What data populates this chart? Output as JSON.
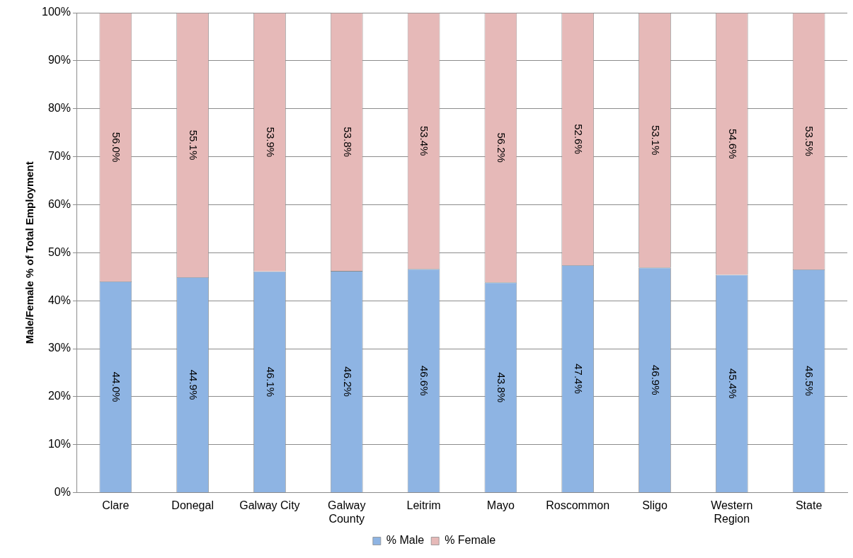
{
  "chart_data": {
    "type": "bar",
    "stacked": true,
    "ylabel": "Male/Female % of Total Employment",
    "categories": [
      "Clare",
      "Donegal",
      "Galway City",
      "Galway County",
      "Leitrim",
      "Mayo",
      "Roscommon",
      "Sligo",
      "Western Region",
      "State"
    ],
    "series": [
      {
        "name": "% Male",
        "color": "#8eb4e3",
        "values": [
          44.0,
          44.9,
          46.1,
          46.2,
          46.6,
          43.8,
          47.4,
          46.9,
          45.4,
          46.5
        ],
        "value_labels": [
          "44.0%",
          "44.9%",
          "46.1%",
          "46.2%",
          "46.6%",
          "43.8%",
          "47.4%",
          "46.9%",
          "45.4%",
          "46.5%"
        ]
      },
      {
        "name": "% Female",
        "color": "#e6b9b8",
        "values": [
          56.0,
          55.1,
          53.9,
          53.8,
          53.4,
          56.2,
          52.6,
          53.1,
          54.6,
          53.5
        ],
        "value_labels": [
          "56.0%",
          "55.1%",
          "53.9%",
          "53.8%",
          "53.4%",
          "56.2%",
          "52.6%",
          "53.1%",
          "54.6%",
          "53.5%"
        ]
      }
    ],
    "ylim": [
      0,
      100
    ],
    "yticks": [
      {
        "value": 0,
        "label": "0%"
      },
      {
        "value": 10,
        "label": "10%"
      },
      {
        "value": 20,
        "label": "20%"
      },
      {
        "value": 30,
        "label": "30%"
      },
      {
        "value": 40,
        "label": "40%"
      },
      {
        "value": 50,
        "label": "50%"
      },
      {
        "value": 60,
        "label": "60%"
      },
      {
        "value": 70,
        "label": "70%"
      },
      {
        "value": 80,
        "label": "80%"
      },
      {
        "value": 90,
        "label": "90%"
      },
      {
        "value": 100,
        "label": "100%"
      }
    ],
    "grid": "y",
    "legend": "bottom"
  }
}
